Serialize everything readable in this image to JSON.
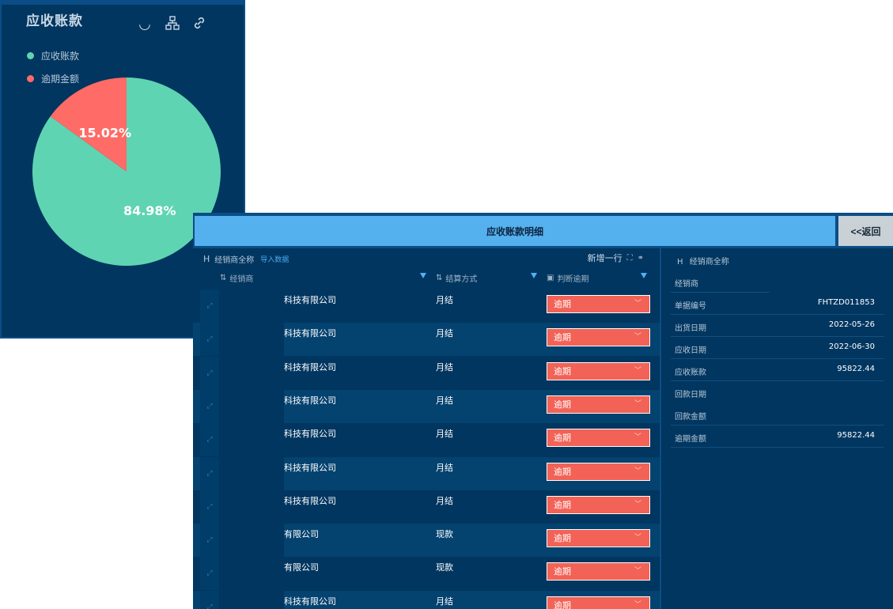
{
  "pie_panel": {
    "title": "应收账款",
    "legend": [
      {
        "label": "应收账款",
        "color": "#5fd4b2"
      },
      {
        "label": "逾期金额",
        "color": "#ff6b66"
      }
    ]
  },
  "chart_data": {
    "type": "pie",
    "title": "应收账款",
    "slices": [
      {
        "name": "应收账款",
        "value": 84.98,
        "label": "84.98%",
        "color": "#5fd4b2"
      },
      {
        "name": "逾期金额",
        "value": 15.02,
        "label": "15.02%",
        "color": "#ff6b66"
      }
    ],
    "legend_position": "top-left"
  },
  "detail": {
    "title": "应收账款明细",
    "back_label": "<<返回",
    "toolbar": {
      "h_label": "H",
      "section_label": "经销商全称",
      "import_label": "导入数据",
      "add_row_label": "新增一行"
    },
    "columns": {
      "dealer": "经销商",
      "settle": "结算方式",
      "judge": "判断逾期"
    },
    "rows": [
      {
        "company": "科技有限公司",
        "settle": "月结",
        "status": "逾期"
      },
      {
        "company": "科技有限公司",
        "settle": "月结",
        "status": "逾期"
      },
      {
        "company": "科技有限公司",
        "settle": "月结",
        "status": "逾期"
      },
      {
        "company": "科技有限公司",
        "settle": "月结",
        "status": "逾期"
      },
      {
        "company": "科技有限公司",
        "settle": "月结",
        "status": "逾期"
      },
      {
        "company": "科技有限公司",
        "settle": "月结",
        "status": "逾期"
      },
      {
        "company": "科技有限公司",
        "settle": "月结",
        "status": "逾期"
      },
      {
        "company": "有限公司",
        "settle": "现款",
        "status": "逾期"
      },
      {
        "company": "有限公司",
        "settle": "现款",
        "status": "逾期"
      },
      {
        "company": "科技有限公司",
        "settle": "月结",
        "status": "逾期"
      }
    ],
    "form": {
      "title": "经销商全称",
      "fields": [
        {
          "label": "经销商",
          "value": ""
        },
        {
          "label": "单据编号",
          "value": "FHTZD011853"
        },
        {
          "label": "出货日期",
          "value": "2022-05-26"
        },
        {
          "label": "应收日期",
          "value": "2022-06-30"
        },
        {
          "label": "应收账款",
          "value": "95822.44"
        },
        {
          "label": "回款日期",
          "value": ""
        },
        {
          "label": "回款金额",
          "value": ""
        },
        {
          "label": "逾期金额",
          "value": "95822.44"
        }
      ]
    }
  }
}
